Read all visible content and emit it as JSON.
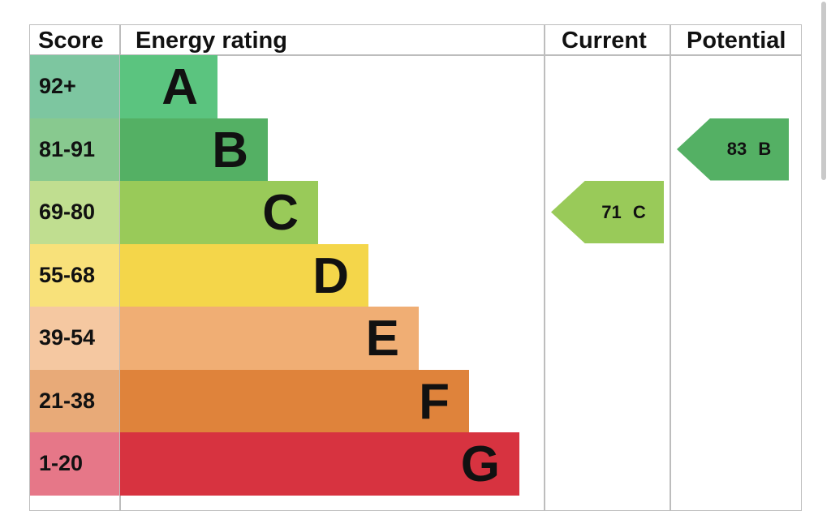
{
  "chart_data": {
    "type": "table",
    "columns": [
      "Score",
      "Energy rating",
      "Current",
      "Potential"
    ],
    "bands": [
      {
        "score": "92+",
        "letter": "A",
        "color": "#5bc47f",
        "light": "#7dc6a0"
      },
      {
        "score": "81-91",
        "letter": "B",
        "color": "#54b064",
        "light": "#88c98f"
      },
      {
        "score": "69-80",
        "letter": "C",
        "color": "#99ca59",
        "light": "#c0de90"
      },
      {
        "score": "55-68",
        "letter": "D",
        "color": "#f4d64a",
        "light": "#f8e17a"
      },
      {
        "score": "39-54",
        "letter": "E",
        "color": "#f0ae74",
        "light": "#f5c8a1"
      },
      {
        "score": "21-38",
        "letter": "F",
        "color": "#df833b",
        "light": "#e8aa78"
      },
      {
        "score": "1-20",
        "letter": "G",
        "color": "#d73340",
        "light": "#e67788"
      }
    ],
    "current": {
      "value": 71,
      "band": "C",
      "label": "71 C",
      "color": "#99ca59"
    },
    "potential": {
      "value": 83,
      "band": "B",
      "label": "83 B",
      "color": "#54b064"
    }
  }
}
